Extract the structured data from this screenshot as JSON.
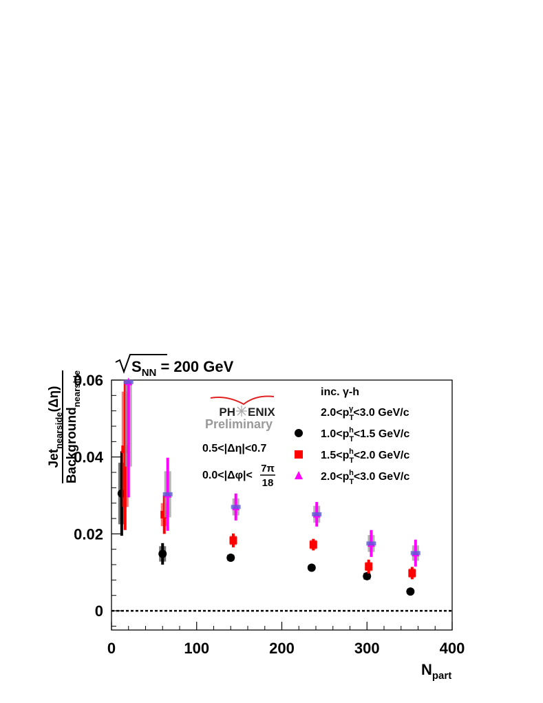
{
  "chart_data": {
    "type": "scatter",
    "title": "S",
    "title_sub": "NN",
    "title_tail": " = 200 GeV",
    "xlabel": "N",
    "xlabel_sub": "part",
    "ylabel_numerator": "Jet",
    "ylabel_numerator_sub": "nearside",
    "ylabel_numerator_tail": "(Δη)",
    "ylabel_denominator": "Background",
    "ylabel_denominator_sub": "nearside",
    "xlim": [
      0,
      400
    ],
    "ylim": [
      -0.005,
      0.06
    ],
    "x_ticks": [
      0,
      100,
      200,
      300,
      400
    ],
    "y_ticks": [
      0,
      0.02,
      0.04,
      0.06
    ],
    "x_tick_labels": [
      "0",
      "100",
      "200",
      "300",
      "400"
    ],
    "y_tick_labels": [
      "0",
      "0.02",
      "0.04",
      "0.06"
    ],
    "zero_line": true,
    "grid": false,
    "logo": {
      "pre": "PH",
      "post": "ENIX",
      "sub": "Preliminary"
    },
    "annotations": {
      "deta": "0.5<|Δη|<0.7",
      "dphi_prefix": "0.0<|Δφ|<",
      "dphi_num": "7π",
      "dphi_den": "18"
    },
    "legend": {
      "header": "inc. γ-h",
      "trigger_prefix": "2.0<p",
      "trigger_sup": "γ",
      "trigger_sub": "T",
      "trigger_suffix": "<3.0 GeV/c",
      "placement": "top-right"
    },
    "series": [
      {
        "name_prefix": "1.0<p",
        "name_sup": "h",
        "name_sub": "T",
        "name_suffix": "<1.5 GeV/c",
        "marker": "circle",
        "color": "#000000",
        "sys_color": "#000000",
        "x": [
          12,
          60,
          140,
          235,
          300,
          351
        ],
        "y": [
          0.0305,
          0.0148,
          0.0138,
          0.0112,
          0.009,
          0.005
        ],
        "stat_err": [
          0.011,
          0.0028,
          0.0008,
          0.0007,
          0.0009,
          0.0007
        ],
        "sys_err": [
          0.008,
          0.002,
          0.0008,
          0.0007,
          0.0009,
          0.0006
        ]
      },
      {
        "name_prefix": "1.5<p",
        "name_sup": "h",
        "name_sub": "T",
        "name_suffix": "<2.0 GeV/c",
        "marker": "square",
        "color": "#ff0000",
        "sys_color": "#ff0000",
        "x": [
          16,
          62,
          143,
          237,
          302,
          353
        ],
        "y": [
          0.042,
          0.025,
          0.0183,
          0.0172,
          0.0115,
          0.0098
        ],
        "stat_err": [
          0.021,
          0.005,
          0.0018,
          0.0015,
          0.0018,
          0.0016
        ],
        "sys_err": [
          0.015,
          0.003,
          0.0012,
          0.0012,
          0.0012,
          0.0012
        ]
      },
      {
        "name_prefix": "2.0<p",
        "name_sup": "h",
        "name_sub": "T",
        "name_suffix": "<3.0 GeV/c",
        "marker": "triangle",
        "color": "#ff00ff",
        "sys_color": "#999999",
        "x": [
          20,
          66,
          146,
          241,
          305,
          357
        ],
        "y": [
          0.0595,
          0.0303,
          0.027,
          0.0251,
          0.0175,
          0.015
        ],
        "stat_err": [
          0.03,
          0.0095,
          0.0035,
          0.0032,
          0.0035,
          0.0035
        ],
        "sys_err": [
          0.022,
          0.006,
          0.0022,
          0.0022,
          0.0022,
          0.002
        ]
      }
    ]
  }
}
